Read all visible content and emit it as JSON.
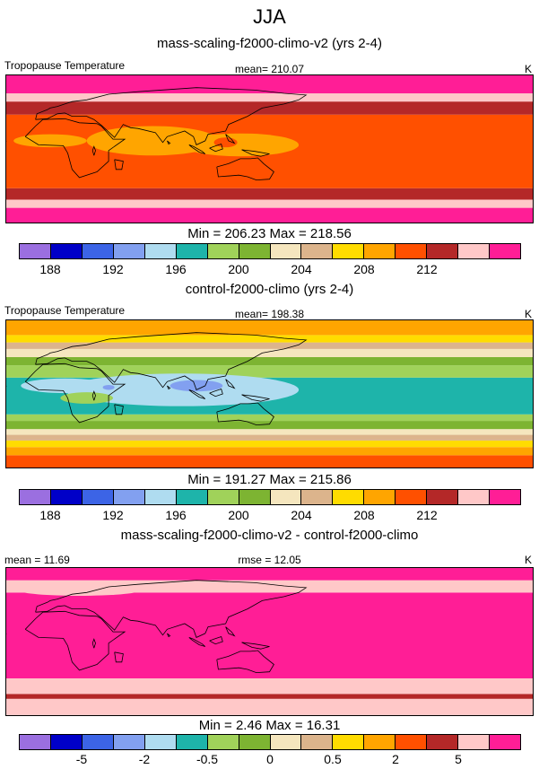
{
  "page_title": "JJA",
  "units": "K",
  "chart_data": [
    {
      "type": "heatmap",
      "title": "mass-scaling-f2000-climo-v2 (yrs 2-4)",
      "left_label": "Tropopause Temperature",
      "center_label": "mean= 210.07",
      "units": "K",
      "min_max": "Min = 206.23 Max = 218.56",
      "min": 206.23,
      "max": 218.56,
      "mean": 210.07,
      "colorbar": {
        "colors": [
          "#9b6fe0",
          "#0000c8",
          "#3c64e6",
          "#82a0f0",
          "#afdcf0",
          "#1eb4aa",
          "#a0d25a",
          "#7db432",
          "#f5e6be",
          "#dcb48c",
          "#ffdc00",
          "#ffa500",
          "#ff5000",
          "#b42828",
          "#ffc8c8",
          "#ff1e96"
        ],
        "ticks": [
          "188",
          "192",
          "196",
          "200",
          "204",
          "208",
          "212"
        ],
        "tick_positions": [
          1,
          3,
          5,
          7,
          9,
          11,
          13
        ]
      },
      "bands": [
        {
          "lat": -90,
          "color": "#ff1e96"
        },
        {
          "lat": -72,
          "color": "#ffc8c8"
        },
        {
          "lat": -62,
          "color": "#b42828"
        },
        {
          "lat": -48,
          "color": "#ff5000"
        },
        {
          "lat": 42,
          "color": "#b42828"
        },
        {
          "lat": 58,
          "color": "#ffc8c8"
        },
        {
          "lat": 68,
          "color": "#ff1e96"
        }
      ],
      "blobs": [
        {
          "lon": 70,
          "lat": 10,
          "rlon": 45,
          "rlat": 18,
          "color": "#ffa500"
        },
        {
          "lon": 130,
          "lat": 5,
          "rlon": 40,
          "rlat": 14,
          "color": "#ffa500"
        },
        {
          "lon": 0,
          "lat": 10,
          "rlon": 25,
          "rlat": 8,
          "color": "#ffa500"
        },
        {
          "lon": 120,
          "lat": 8,
          "rlon": 8,
          "rlat": 6,
          "color": "#ff5000"
        }
      ]
    },
    {
      "type": "heatmap",
      "title": "control-f2000-climo (yrs 2-4)",
      "left_label": "Tropopause Temperature",
      "center_label": "mean= 198.38",
      "units": "K",
      "min_max": "Min = 191.27 Max = 215.86",
      "min": 191.27,
      "max": 215.86,
      "mean": 198.38,
      "colorbar": {
        "colors": [
          "#9b6fe0",
          "#0000c8",
          "#3c64e6",
          "#82a0f0",
          "#afdcf0",
          "#1eb4aa",
          "#a0d25a",
          "#7db432",
          "#f5e6be",
          "#dcb48c",
          "#ffdc00",
          "#ffa500",
          "#ff5000",
          "#b42828",
          "#ffc8c8",
          "#ff1e96"
        ],
        "ticks": [
          "188",
          "192",
          "196",
          "200",
          "204",
          "208",
          "212"
        ],
        "tick_positions": [
          1,
          3,
          5,
          7,
          9,
          11,
          13
        ]
      },
      "bands": [
        {
          "lat": -90,
          "color": "#ff5000"
        },
        {
          "lat": -75,
          "color": "#ffa500"
        },
        {
          "lat": -65,
          "color": "#ffdc00"
        },
        {
          "lat": -57,
          "color": "#dcb48c"
        },
        {
          "lat": -50,
          "color": "#f5e6be"
        },
        {
          "lat": -43,
          "color": "#7db432"
        },
        {
          "lat": -33,
          "color": "#a0d25a"
        },
        {
          "lat": -25,
          "color": "#1eb4aa"
        },
        {
          "lat": 20,
          "color": "#a0d25a"
        },
        {
          "lat": 35,
          "color": "#7db432"
        },
        {
          "lat": 45,
          "color": "#f5e6be"
        },
        {
          "lat": 55,
          "color": "#dcb48c"
        },
        {
          "lat": 63,
          "color": "#ffdc00"
        },
        {
          "lat": 72,
          "color": "#ffa500"
        }
      ],
      "blobs": [
        {
          "lon": 90,
          "lat": 5,
          "rlon": 80,
          "rlat": 20,
          "color": "#afdcf0"
        },
        {
          "lon": 10,
          "lat": 10,
          "rlon": 30,
          "rlat": 9,
          "color": "#afdcf0"
        },
        {
          "lon": 100,
          "lat": 10,
          "rlon": 18,
          "rlat": 7,
          "color": "#82a0f0"
        },
        {
          "lon": 40,
          "lat": 8,
          "rlon": 4,
          "rlat": 3,
          "color": "#82a0f0"
        },
        {
          "lon": 25,
          "lat": -5,
          "rlon": 18,
          "rlat": 7,
          "color": "#a0d25a"
        }
      ]
    },
    {
      "type": "heatmap",
      "title": "mass-scaling-f2000-climo-v2 - control-f2000-climo",
      "left_label": "mean = 11.69",
      "center_label": "rmse = 12.05",
      "units": "K",
      "min_max": "Min =  2.46 Max =  16.31",
      "min": 2.46,
      "max": 16.31,
      "mean": 11.69,
      "rmse": 12.05,
      "colorbar": {
        "colors": [
          "#9b6fe0",
          "#0000c8",
          "#3c64e6",
          "#82a0f0",
          "#afdcf0",
          "#1eb4aa",
          "#a0d25a",
          "#7db432",
          "#f5e6be",
          "#dcb48c",
          "#ffdc00",
          "#ffa500",
          "#ff5000",
          "#b42828",
          "#ffc8c8",
          "#ff1e96"
        ],
        "ticks": [
          "-5",
          "-2",
          "-0.5",
          "0",
          "0.5",
          "2",
          "5"
        ],
        "tick_positions": [
          2,
          4,
          6,
          8,
          10,
          12,
          14
        ]
      },
      "bands": [
        {
          "lat": -90,
          "color": "#ffc8c8"
        },
        {
          "lat": -70,
          "color": "#b42828"
        },
        {
          "lat": -64,
          "color": "#ffc8c8"
        },
        {
          "lat": -45,
          "color": "#ff1e96"
        },
        {
          "lat": 60,
          "color": "#ffc8c8"
        },
        {
          "lat": 75,
          "color": "#ff1e96"
        }
      ],
      "blobs": [
        {
          "lon": 20,
          "lat": 62,
          "rlon": 40,
          "rlat": 6,
          "color": "#ffc8c8"
        }
      ]
    }
  ]
}
